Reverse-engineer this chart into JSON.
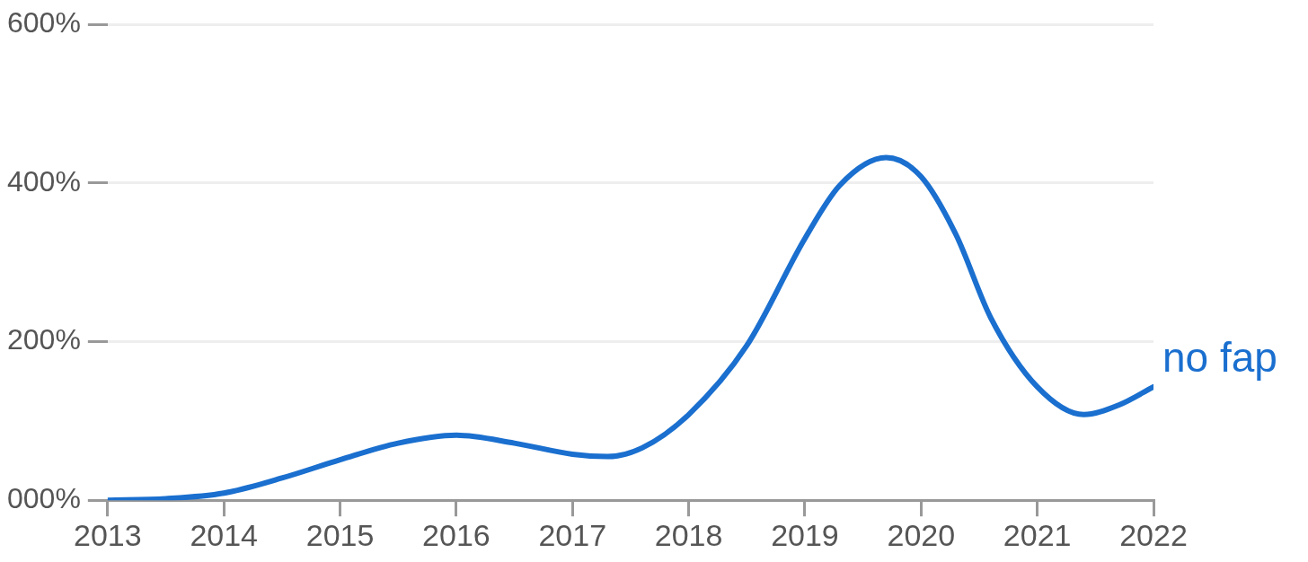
{
  "chart_data": {
    "type": "line",
    "x": [
      2013,
      2013.5,
      2014,
      2014.5,
      2015,
      2015.5,
      2016,
      2016.5,
      2017,
      2017.3,
      2017.6,
      2018,
      2018.5,
      2019,
      2019.3,
      2019.7,
      2020,
      2020.3,
      2020.6,
      2021,
      2021.4,
      2021.7,
      2022
    ],
    "series": [
      {
        "name": "no fap",
        "color": "#1a6fcf",
        "values": [
          0,
          2,
          9,
          28,
          51,
          72,
          82,
          72,
          58,
          55,
          66,
          108,
          195,
          330,
          397,
          432,
          408,
          335,
          230,
          143,
          108,
          120,
          143
        ]
      }
    ],
    "xlim": [
      2013,
      2022
    ],
    "xticks": [
      2013,
      2014,
      2015,
      2016,
      2017,
      2018,
      2019,
      2020,
      2021,
      2022
    ],
    "ylim": [
      0,
      600
    ],
    "yticks": [
      {
        "value": 0,
        "label": "000%"
      },
      {
        "value": 200,
        "label": "200%"
      },
      {
        "value": 400,
        "label": "400%"
      },
      {
        "value": 600,
        "label": "600%"
      }
    ],
    "grid": "y",
    "legend": false,
    "marker": "none",
    "line_style": "solid"
  }
}
